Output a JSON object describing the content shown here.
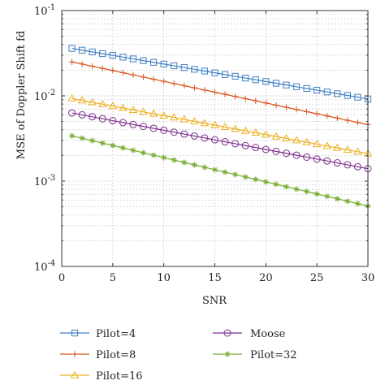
{
  "chart_data": {
    "type": "line",
    "title": "",
    "xlabel": "SNR",
    "ylabel": "MSE of Doppler Shift fd",
    "xlim": [
      0,
      30
    ],
    "ylim": [
      0.0001,
      0.1
    ],
    "yscale": "log",
    "grid": true,
    "legend_position": "bottom",
    "x_ticks": [
      0,
      5,
      10,
      15,
      20,
      25,
      30
    ],
    "x_tick_labels": [
      "0",
      "5",
      "10",
      "15",
      "20",
      "25",
      "30"
    ],
    "y_ticks": [
      {
        "value": 0.1,
        "base": "10",
        "exp": "-1"
      },
      {
        "value": 0.01,
        "base": "10",
        "exp": "-2"
      },
      {
        "value": 0.001,
        "base": "10",
        "exp": "-3"
      },
      {
        "value": 0.0001,
        "base": "10",
        "exp": "-4"
      }
    ],
    "x": [
      1,
      30
    ],
    "point_count": 30,
    "series": [
      {
        "name": "Pilot=4",
        "marker": "square",
        "color": "#3f7fc4",
        "values": [
          0.036,
          0.0092
        ]
      },
      {
        "name": "Pilot=8",
        "marker": "plus",
        "color": "#d9541f",
        "values": [
          0.025,
          0.0046
        ]
      },
      {
        "name": "Pilot=16",
        "marker": "triangle",
        "color": "#ecb01f",
        "values": [
          0.0093,
          0.0021
        ]
      },
      {
        "name": "Moose",
        "marker": "circle",
        "color": "#7e2f8e",
        "values": [
          0.0063,
          0.0014
        ]
      },
      {
        "name": "Pilot=32",
        "marker": "star",
        "color": "#77ac30",
        "values": [
          0.0034,
          0.00051
        ]
      }
    ]
  }
}
